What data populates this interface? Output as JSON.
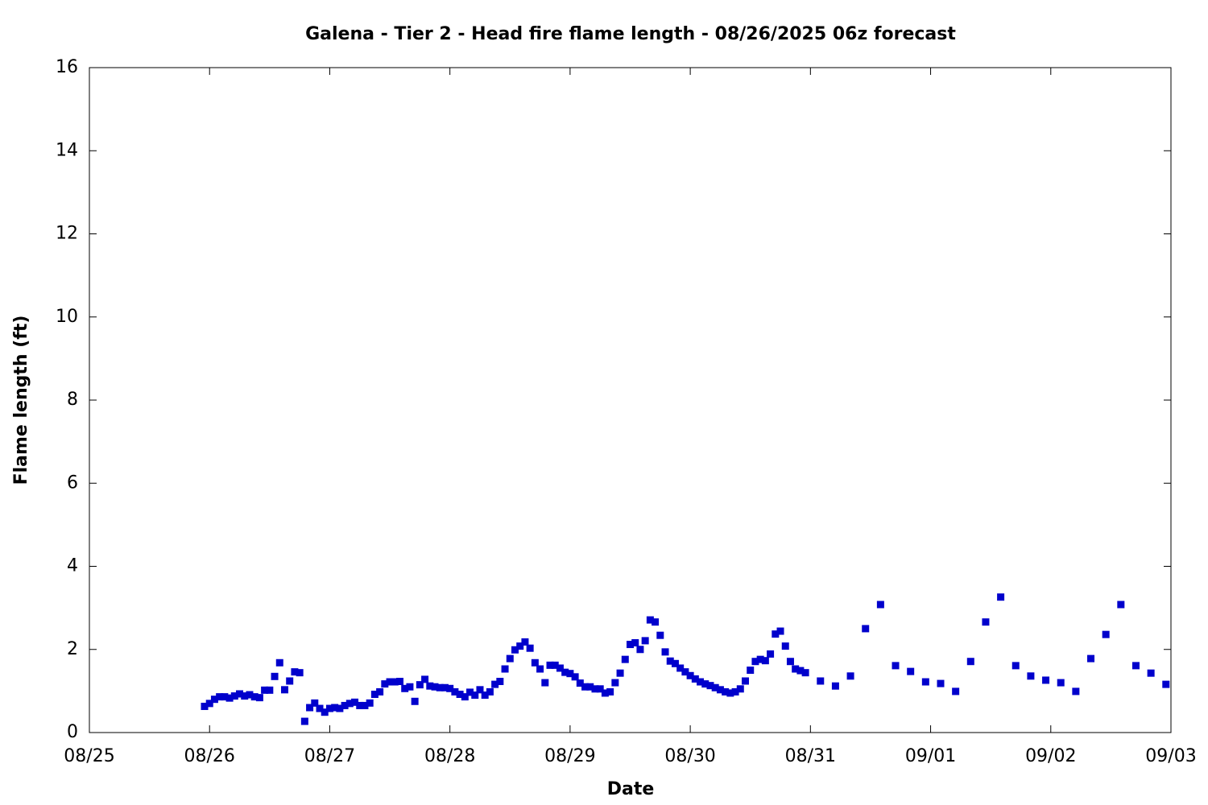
{
  "chart_data": {
    "type": "scatter",
    "title": "Galena - Tier 2 - Head fire flame length - 08/26/2025 06z forecast",
    "xlabel": "Date",
    "ylabel": "Flame length (ft)",
    "xlim": [
      0,
      216
    ],
    "xticks": [
      {
        "value": 0,
        "label": "08/25"
      },
      {
        "value": 24,
        "label": "08/26"
      },
      {
        "value": 48,
        "label": "08/27"
      },
      {
        "value": 72,
        "label": "08/28"
      },
      {
        "value": 96,
        "label": "08/29"
      },
      {
        "value": 120,
        "label": "08/30"
      },
      {
        "value": 144,
        "label": "08/31"
      },
      {
        "value": 168,
        "label": "09/01"
      },
      {
        "value": 192,
        "label": "09/02"
      },
      {
        "value": 216,
        "label": "09/03"
      }
    ],
    "ylim": [
      0,
      16
    ],
    "yticks": [
      0,
      2,
      4,
      6,
      8,
      10,
      12,
      14,
      16
    ],
    "series": [
      {
        "color": "#0000cc",
        "x": [
          23,
          24,
          25,
          26,
          27,
          28,
          29,
          30,
          31,
          32,
          33,
          34,
          35,
          36,
          37,
          38,
          39,
          40,
          41,
          42,
          43,
          44,
          45,
          46,
          47,
          48,
          49,
          50,
          51,
          52,
          53,
          54,
          55,
          56,
          57,
          58,
          59,
          60,
          61,
          62,
          63,
          64,
          65,
          66,
          67,
          68,
          69,
          70,
          71,
          72,
          73,
          74,
          75,
          76,
          77,
          78,
          79,
          80,
          81,
          82,
          83,
          84,
          85,
          86,
          87,
          88,
          89,
          90,
          91,
          92,
          93,
          94,
          95,
          96,
          97,
          98,
          99,
          100,
          101,
          102,
          103,
          104,
          105,
          106,
          107,
          108,
          109,
          110,
          111,
          112,
          113,
          114,
          115,
          116,
          117,
          118,
          119,
          120,
          121,
          122,
          123,
          124,
          125,
          126,
          127,
          128,
          129,
          130,
          131,
          132,
          133,
          134,
          135,
          136,
          137,
          138,
          139,
          140,
          141,
          142,
          143,
          146,
          149,
          152,
          155,
          158,
          161,
          164,
          167,
          170,
          173,
          176,
          179,
          182,
          185,
          188,
          191,
          194,
          197,
          200,
          203,
          206,
          209,
          212,
          215
        ],
        "values": [
          0.63,
          0.7,
          0.8,
          0.86,
          0.86,
          0.83,
          0.88,
          0.93,
          0.88,
          0.91,
          0.86,
          0.84,
          1.02,
          1.02,
          1.35,
          1.68,
          1.03,
          1.24,
          1.46,
          1.44,
          0.27,
          0.6,
          0.71,
          0.58,
          0.49,
          0.58,
          0.6,
          0.58,
          0.65,
          0.7,
          0.73,
          0.65,
          0.65,
          0.71,
          0.92,
          0.98,
          1.17,
          1.22,
          1.22,
          1.23,
          1.06,
          1.1,
          0.75,
          1.15,
          1.28,
          1.12,
          1.1,
          1.08,
          1.08,
          1.06,
          0.98,
          0.92,
          0.86,
          0.97,
          0.9,
          1.03,
          0.9,
          0.98,
          1.16,
          1.23,
          1.53,
          1.78,
          1.99,
          2.08,
          2.18,
          2.03,
          1.68,
          1.53,
          1.2,
          1.62,
          1.62,
          1.55,
          1.45,
          1.42,
          1.34,
          1.19,
          1.1,
          1.1,
          1.05,
          1.05,
          0.95,
          0.98,
          1.2,
          1.43,
          1.76,
          2.12,
          2.16,
          2.0,
          2.21,
          2.71,
          2.66,
          2.34,
          1.94,
          1.72,
          1.66,
          1.55,
          1.46,
          1.37,
          1.29,
          1.22,
          1.17,
          1.13,
          1.08,
          1.03,
          0.98,
          0.95,
          0.98,
          1.05,
          1.24,
          1.5,
          1.71,
          1.76,
          1.73,
          1.89,
          2.37,
          2.44,
          2.08,
          1.71,
          1.53,
          1.49,
          1.44,
          1.24,
          1.12,
          1.36,
          2.5,
          3.08,
          1.61,
          1.47,
          1.22,
          1.18,
          0.99,
          1.71,
          2.66,
          3.26,
          1.61,
          1.36,
          1.26,
          1.2,
          0.99,
          1.78,
          2.36,
          3.08,
          1.61,
          1.43,
          1.16
        ]
      }
    ]
  }
}
